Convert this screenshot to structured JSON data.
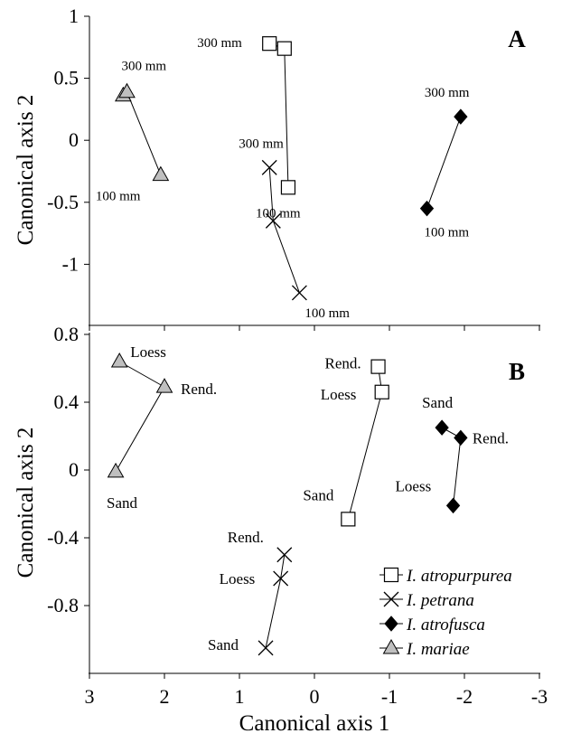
{
  "chart_data": [
    {
      "type": "scatter",
      "panel": "A",
      "xlabel": "",
      "ylabel": "Canonical axis 2",
      "xlim": [
        3,
        -3
      ],
      "ylim": [
        -1.5,
        1
      ],
      "yticks": [
        "1",
        "0.5",
        "0",
        "-0.5",
        "-1"
      ],
      "series": [
        {
          "name": "I. atropurpurea",
          "marker": "square",
          "color": "#ffffff",
          "points": [
            {
              "x": 0.6,
              "y": 0.78
            },
            {
              "x": 0.4,
              "y": 0.74
            },
            {
              "x": 0.35,
              "y": -0.38
            }
          ],
          "labels": [
            {
              "text": "300 mm",
              "near": 0
            },
            {
              "text": "100 mm",
              "near": 2
            }
          ]
        },
        {
          "name": "I. petrana",
          "marker": "x",
          "color": "#000000",
          "points": [
            {
              "x": 0.6,
              "y": -0.22
            },
            {
              "x": 0.55,
              "y": -0.65
            },
            {
              "x": 0.2,
              "y": -1.23
            }
          ],
          "labels": [
            {
              "text": "300 mm",
              "near": 0
            },
            {
              "text": "100 mm",
              "near": 2
            }
          ]
        },
        {
          "name": "I. atrofusca",
          "marker": "diamond",
          "color": "#000000",
          "points": [
            {
              "x": -1.95,
              "y": 0.19
            },
            {
              "x": -1.5,
              "y": -0.55
            }
          ],
          "labels": [
            {
              "text": "300 mm",
              "near": 0
            },
            {
              "text": "100 mm",
              "near": 1
            }
          ]
        },
        {
          "name": "I. mariae",
          "marker": "triangle",
          "color": "#bfbfbf",
          "points": [
            {
              "x": 2.55,
              "y": 0.36
            },
            {
              "x": 2.5,
              "y": 0.39
            },
            {
              "x": 2.05,
              "y": -0.28
            }
          ],
          "labels": [
            {
              "text": "300 mm",
              "near": 1
            },
            {
              "text": "100 mm",
              "near": 2
            }
          ]
        }
      ],
      "panel_label": "A"
    },
    {
      "type": "scatter",
      "panel": "B",
      "xlabel": "Canonical axis 1",
      "ylabel": "Canonical axis 2",
      "xlim": [
        3,
        -3
      ],
      "ylim": [
        -1.2,
        0.8
      ],
      "xticks": [
        "3",
        "2",
        "1",
        "0",
        "-1",
        "-2",
        "-3"
      ],
      "yticks": [
        "0.8",
        "0.4",
        "0",
        "-0.4",
        "-0.8"
      ],
      "series": [
        {
          "name": "I. atropurpurea",
          "marker": "square",
          "color": "#ffffff",
          "points": [
            {
              "x": -0.85,
              "y": 0.61
            },
            {
              "x": -0.9,
              "y": 0.46
            },
            {
              "x": -0.45,
              "y": -0.29
            }
          ],
          "labels": [
            {
              "text": "Rend.",
              "near": 0
            },
            {
              "text": "Loess",
              "near": 1
            },
            {
              "text": "Sand",
              "near": 2
            }
          ]
        },
        {
          "name": "I. petrana",
          "marker": "x",
          "color": "#000000",
          "points": [
            {
              "x": 0.4,
              "y": -0.5
            },
            {
              "x": 0.45,
              "y": -0.64
            },
            {
              "x": 0.65,
              "y": -1.05
            }
          ],
          "labels": [
            {
              "text": "Rend.",
              "near": 0
            },
            {
              "text": "Loess",
              "near": 1
            },
            {
              "text": "Sand",
              "near": 2
            }
          ]
        },
        {
          "name": "I. atrofusca",
          "marker": "diamond",
          "color": "#000000",
          "points": [
            {
              "x": -1.7,
              "y": 0.25
            },
            {
              "x": -1.95,
              "y": 0.19
            },
            {
              "x": -1.85,
              "y": -0.21
            }
          ],
          "labels": [
            {
              "text": "Sand",
              "near": 0
            },
            {
              "text": "Rend.",
              "near": 1
            },
            {
              "text": "Loess",
              "near": 2
            }
          ]
        },
        {
          "name": "I. mariae",
          "marker": "triangle",
          "color": "#bfbfbf",
          "points": [
            {
              "x": 2.6,
              "y": 0.64
            },
            {
              "x": 2.0,
              "y": 0.49
            },
            {
              "x": 2.65,
              "y": -0.01
            }
          ],
          "labels": [
            {
              "text": "Loess",
              "near": 0
            },
            {
              "text": "Rend.",
              "near": 1
            },
            {
              "text": "Sand",
              "near": 2
            }
          ]
        }
      ],
      "legend": {
        "placement": "bottom-right",
        "entries": [
          "I. atropurpurea",
          "I. petrana",
          "I. atrofusca",
          "I. mariae"
        ]
      },
      "panel_label": "B"
    }
  ]
}
